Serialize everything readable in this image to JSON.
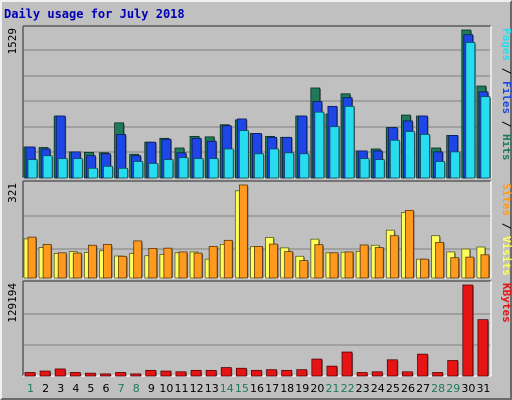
{
  "title": "Daily usage for July 2018",
  "colors": {
    "background": "#c0c0c0",
    "panel": "#c0c0c0",
    "title": "#0000b4",
    "hits": "#1e7a5a",
    "files": "#1e46e6",
    "pages": "#28dcf0",
    "visits": "#ffff5a",
    "sites": "#ff9a1e",
    "kbytes": "#e61414",
    "weekday_label": "#000000",
    "weekend_label": "#1e7a5a"
  },
  "legend": {
    "top": [
      {
        "text": "Pages",
        "color": "#28dcf0"
      },
      {
        "text": " / ",
        "color": "#000000"
      },
      {
        "text": "Files",
        "color": "#1e46e6"
      },
      {
        "text": " / ",
        "color": "#000000"
      },
      {
        "text": "Hits",
        "color": "#1e7a5a"
      }
    ],
    "middle": [
      {
        "text": "Sites",
        "color": "#ff9a1e"
      },
      {
        "text": " / ",
        "color": "#000000"
      },
      {
        "text": "Visits",
        "color": "#ffff5a"
      }
    ],
    "bottom": [
      {
        "text": "KBytes",
        "color": "#e61414"
      }
    ]
  },
  "chart_data": [
    {
      "type": "bar",
      "panel": "top",
      "y_max_label": "1529",
      "ylim": [
        0,
        1529
      ],
      "grid": true,
      "categories": [
        "1",
        "2",
        "3",
        "4",
        "5",
        "6",
        "7",
        "8",
        "9",
        "10",
        "11",
        "12",
        "13",
        "14",
        "15",
        "16",
        "17",
        "18",
        "19",
        "20",
        "21",
        "22",
        "23",
        "24",
        "25",
        "26",
        "27",
        "28",
        "29",
        "30",
        "31"
      ],
      "series": [
        {
          "name": "Hits",
          "values": [
            320,
            315,
            640,
            270,
            265,
            260,
            570,
            245,
            370,
            410,
            310,
            430,
            425,
            550,
            600,
            460,
            430,
            420,
            640,
            930,
            660,
            870,
            280,
            300,
            520,
            650,
            640,
            310,
            440,
            1529,
            950
          ]
        },
        {
          "name": "Files",
          "values": [
            320,
            300,
            640,
            270,
            230,
            250,
            450,
            230,
            370,
            400,
            260,
            410,
            380,
            540,
            610,
            460,
            420,
            420,
            640,
            790,
            740,
            830,
            280,
            280,
            520,
            590,
            640,
            270,
            440,
            1480,
            890
          ]
        },
        {
          "name": "Pages",
          "values": [
            190,
            230,
            200,
            200,
            100,
            120,
            100,
            170,
            150,
            190,
            210,
            200,
            200,
            300,
            490,
            250,
            300,
            260,
            250,
            680,
            530,
            740,
            200,
            190,
            390,
            480,
            450,
            170,
            270,
            1400,
            840
          ]
        }
      ]
    },
    {
      "type": "bar",
      "panel": "middle",
      "y_max_label": "321",
      "ylim": [
        0,
        321
      ],
      "grid": true,
      "categories": [
        "1",
        "2",
        "3",
        "4",
        "5",
        "6",
        "7",
        "8",
        "9",
        "10",
        "11",
        "12",
        "13",
        "14",
        "15",
        "16",
        "17",
        "18",
        "19",
        "20",
        "21",
        "22",
        "23",
        "24",
        "25",
        "26",
        "27",
        "28",
        "29",
        "30",
        "31"
      ],
      "series": [
        {
          "name": "Visits",
          "values": [
            135,
            105,
            85,
            91,
            88,
            94,
            76,
            85,
            77,
            81,
            87,
            90,
            65,
            116,
            301,
            108,
            140,
            104,
            75,
            134,
            87,
            89,
            92,
            113,
            165,
            226,
            65,
            146,
            90,
            100,
            107
          ]
        },
        {
          "name": "Sites",
          "values": [
            141,
            116,
            87,
            86,
            113,
            116,
            75,
            128,
            102,
            103,
            90,
            86,
            109,
            130,
            321,
            109,
            117,
            91,
            60,
            115,
            87,
            90,
            114,
            105,
            146,
            233,
            65,
            123,
            70,
            72,
            80
          ]
        }
      ]
    },
    {
      "type": "bar",
      "panel": "bottom",
      "y_max_label": "129194",
      "ylim": [
        0,
        129194
      ],
      "grid": true,
      "categories": [
        "1",
        "2",
        "3",
        "4",
        "5",
        "6",
        "7",
        "8",
        "9",
        "10",
        "11",
        "12",
        "13",
        "14",
        "15",
        "16",
        "17",
        "18",
        "19",
        "20",
        "21",
        "22",
        "23",
        "24",
        "25",
        "26",
        "27",
        "28",
        "29",
        "30",
        "31"
      ],
      "series": [
        {
          "name": "KBytes",
          "values": [
            5000,
            7000,
            10000,
            5000,
            4000,
            3000,
            5000,
            3000,
            8000,
            7000,
            6000,
            8000,
            8000,
            12000,
            11000,
            8000,
            9000,
            8000,
            9000,
            24000,
            14000,
            34000,
            5000,
            6000,
            23000,
            6000,
            31000,
            5000,
            22000,
            129194,
            80000
          ]
        }
      ]
    }
  ],
  "x_axis": {
    "day_labels": [
      "1",
      "2",
      "3",
      "4",
      "5",
      "6",
      "7",
      "8",
      "9",
      "10",
      "11",
      "12",
      "13",
      "14",
      "15",
      "16",
      "17",
      "18",
      "19",
      "20",
      "21",
      "22",
      "23",
      "24",
      "25",
      "26",
      "27",
      "28",
      "29",
      "30",
      "31"
    ],
    "weekend_days": [
      1,
      7,
      8,
      14,
      15,
      21,
      22,
      28,
      29
    ]
  }
}
